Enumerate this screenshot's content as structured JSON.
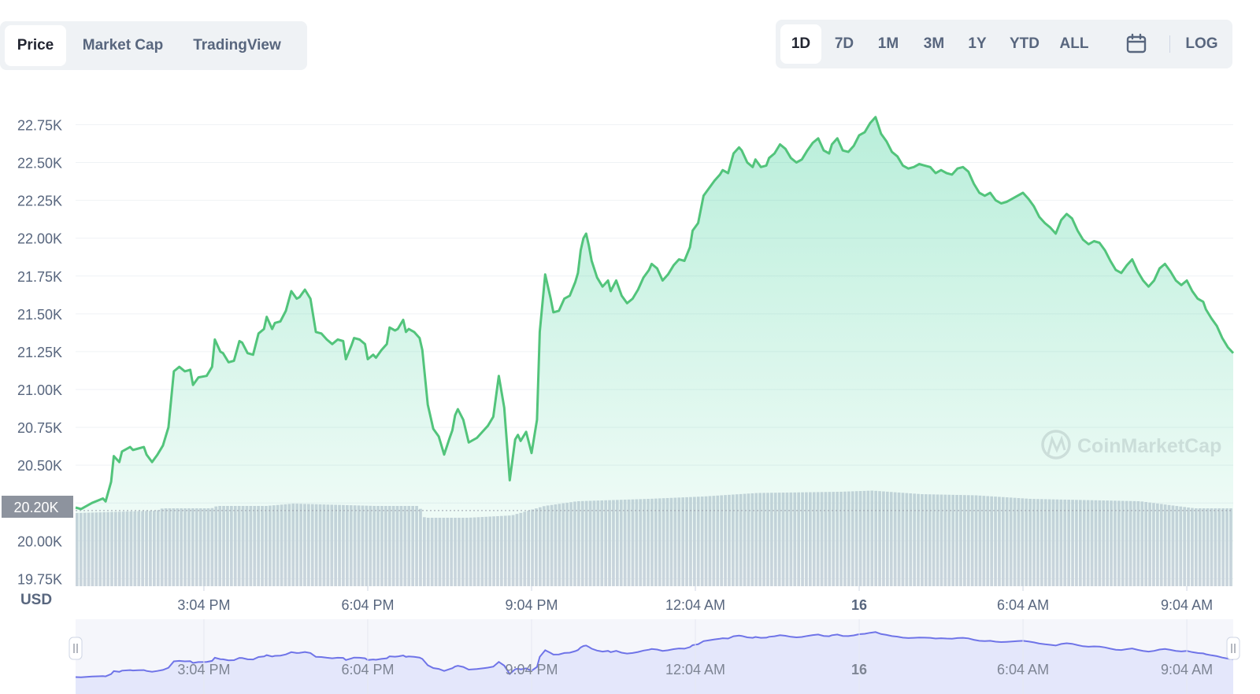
{
  "tabs": [
    {
      "label": "Price",
      "active": true
    },
    {
      "label": "Market Cap",
      "active": false
    },
    {
      "label": "TradingView",
      "active": false
    }
  ],
  "ranges": [
    {
      "label": "1D",
      "active": true
    },
    {
      "label": "7D",
      "active": false
    },
    {
      "label": "1M",
      "active": false
    },
    {
      "label": "3M",
      "active": false
    },
    {
      "label": "1Y",
      "active": false
    },
    {
      "label": "YTD",
      "active": false
    },
    {
      "label": "ALL",
      "active": false
    }
  ],
  "calendar_icon": "calendar-icon",
  "log_label": "LOG",
  "watermark": "CoinMarketCap",
  "currency_label": "USD",
  "current_price_label": "20.20K",
  "colors": {
    "line": "#52c47b",
    "area": "#16c784",
    "volume": "#cfd4df",
    "navigator_line": "#6f74e8",
    "navigator_fill": "#e4e7fb",
    "badge": "#8d939e"
  },
  "chart_data": {
    "type": "line",
    "title": "",
    "xlabel": "",
    "ylabel": "USD",
    "ylim": [
      19700,
      22950
    ],
    "y_ticks": [
      "19.75K",
      "20.00K",
      "20.25K",
      "20.50K",
      "20.75K",
      "21.00K",
      "21.25K",
      "21.50K",
      "21.75K",
      "22.00K",
      "22.25K",
      "22.50K",
      "22.75K"
    ],
    "y_tick_values": [
      19750,
      20000,
      20250,
      20500,
      20750,
      21000,
      21250,
      21500,
      21750,
      22000,
      22250,
      22500,
      22750
    ],
    "x_tick_labels": [
      "3:04 PM",
      "6:04 PM",
      "9:04 PM",
      "12:04 AM",
      "16",
      "6:04 AM",
      "9:04 AM"
    ],
    "x_tick_hours": [
      2.35,
      5.35,
      8.35,
      11.35,
      14.35,
      17.35,
      20.35
    ],
    "x_unit": "hours since start of 1D window (12:43 PM)",
    "grid": true,
    "legend": "none",
    "reference_price": 20200,
    "series": [
      {
        "name": "Price",
        "points": [
          [
            0.0,
            20220
          ],
          [
            0.1,
            20210
          ],
          [
            0.3,
            20250
          ],
          [
            0.5,
            20280
          ],
          [
            0.55,
            20260
          ],
          [
            0.65,
            20390
          ],
          [
            0.7,
            20560
          ],
          [
            0.8,
            20520
          ],
          [
            0.85,
            20590
          ],
          [
            1.0,
            20620
          ],
          [
            1.05,
            20600
          ],
          [
            1.15,
            20610
          ],
          [
            1.25,
            20620
          ],
          [
            1.3,
            20570
          ],
          [
            1.4,
            20520
          ],
          [
            1.5,
            20570
          ],
          [
            1.6,
            20630
          ],
          [
            1.7,
            20750
          ],
          [
            1.8,
            21120
          ],
          [
            1.9,
            21150
          ],
          [
            2.0,
            21120
          ],
          [
            2.1,
            21130
          ],
          [
            2.15,
            21030
          ],
          [
            2.25,
            21080
          ],
          [
            2.4,
            21090
          ],
          [
            2.5,
            21150
          ],
          [
            2.55,
            21330
          ],
          [
            2.65,
            21250
          ],
          [
            2.7,
            21240
          ],
          [
            2.8,
            21180
          ],
          [
            2.9,
            21190
          ],
          [
            3.0,
            21320
          ],
          [
            3.05,
            21310
          ],
          [
            3.15,
            21240
          ],
          [
            3.25,
            21230
          ],
          [
            3.35,
            21370
          ],
          [
            3.45,
            21400
          ],
          [
            3.5,
            21480
          ],
          [
            3.6,
            21400
          ],
          [
            3.65,
            21440
          ],
          [
            3.75,
            21450
          ],
          [
            3.85,
            21520
          ],
          [
            3.95,
            21650
          ],
          [
            4.05,
            21600
          ],
          [
            4.1,
            21610
          ],
          [
            4.2,
            21660
          ],
          [
            4.3,
            21600
          ],
          [
            4.4,
            21380
          ],
          [
            4.5,
            21370
          ],
          [
            4.6,
            21330
          ],
          [
            4.7,
            21300
          ],
          [
            4.8,
            21330
          ],
          [
            4.9,
            21320
          ],
          [
            4.95,
            21200
          ],
          [
            5.05,
            21290
          ],
          [
            5.1,
            21340
          ],
          [
            5.2,
            21330
          ],
          [
            5.3,
            21300
          ],
          [
            5.35,
            21200
          ],
          [
            5.45,
            21230
          ],
          [
            5.5,
            21210
          ],
          [
            5.6,
            21260
          ],
          [
            5.7,
            21300
          ],
          [
            5.75,
            21410
          ],
          [
            5.85,
            21390
          ],
          [
            5.9,
            21400
          ],
          [
            6.0,
            21460
          ],
          [
            6.05,
            21380
          ],
          [
            6.1,
            21400
          ],
          [
            6.2,
            21380
          ],
          [
            6.3,
            21340
          ],
          [
            6.35,
            21260
          ],
          [
            6.45,
            20900
          ],
          [
            6.55,
            20740
          ],
          [
            6.65,
            20690
          ],
          [
            6.75,
            20570
          ],
          [
            6.85,
            20680
          ],
          [
            6.9,
            20730
          ],
          [
            6.95,
            20830
          ],
          [
            7.0,
            20870
          ],
          [
            7.1,
            20800
          ],
          [
            7.2,
            20650
          ],
          [
            7.35,
            20680
          ],
          [
            7.5,
            20740
          ],
          [
            7.55,
            20760
          ],
          [
            7.65,
            20820
          ],
          [
            7.75,
            21090
          ],
          [
            7.85,
            20880
          ],
          [
            7.95,
            20400
          ],
          [
            8.05,
            20670
          ],
          [
            8.1,
            20700
          ],
          [
            8.15,
            20660
          ],
          [
            8.25,
            20720
          ],
          [
            8.35,
            20580
          ],
          [
            8.45,
            20800
          ],
          [
            8.5,
            21380
          ],
          [
            8.6,
            21760
          ],
          [
            8.7,
            21600
          ],
          [
            8.75,
            21510
          ],
          [
            8.85,
            21520
          ],
          [
            8.95,
            21600
          ],
          [
            9.05,
            21620
          ],
          [
            9.15,
            21710
          ],
          [
            9.2,
            21770
          ],
          [
            9.25,
            21920
          ],
          [
            9.3,
            22000
          ],
          [
            9.35,
            22030
          ],
          [
            9.4,
            21950
          ],
          [
            9.45,
            21850
          ],
          [
            9.55,
            21740
          ],
          [
            9.65,
            21680
          ],
          [
            9.75,
            21720
          ],
          [
            9.8,
            21650
          ],
          [
            9.9,
            21720
          ],
          [
            10.0,
            21620
          ],
          [
            10.1,
            21570
          ],
          [
            10.2,
            21600
          ],
          [
            10.3,
            21660
          ],
          [
            10.4,
            21740
          ],
          [
            10.5,
            21790
          ],
          [
            10.55,
            21830
          ],
          [
            10.65,
            21800
          ],
          [
            10.75,
            21720
          ],
          [
            10.85,
            21760
          ],
          [
            10.95,
            21820
          ],
          [
            11.05,
            21860
          ],
          [
            11.15,
            21850
          ],
          [
            11.25,
            21940
          ],
          [
            11.3,
            22050
          ],
          [
            11.4,
            22100
          ],
          [
            11.5,
            22280
          ],
          [
            11.6,
            22330
          ],
          [
            11.7,
            22380
          ],
          [
            11.8,
            22420
          ],
          [
            11.85,
            22450
          ],
          [
            11.95,
            22430
          ],
          [
            12.05,
            22560
          ],
          [
            12.15,
            22600
          ],
          [
            12.2,
            22580
          ],
          [
            12.3,
            22500
          ],
          [
            12.4,
            22470
          ],
          [
            12.45,
            22520
          ],
          [
            12.55,
            22470
          ],
          [
            12.65,
            22480
          ],
          [
            12.7,
            22530
          ],
          [
            12.8,
            22560
          ],
          [
            12.9,
            22620
          ],
          [
            13.0,
            22590
          ],
          [
            13.1,
            22530
          ],
          [
            13.2,
            22500
          ],
          [
            13.3,
            22520
          ],
          [
            13.4,
            22580
          ],
          [
            13.5,
            22630
          ],
          [
            13.6,
            22660
          ],
          [
            13.7,
            22580
          ],
          [
            13.8,
            22560
          ],
          [
            13.85,
            22620
          ],
          [
            13.95,
            22660
          ],
          [
            14.05,
            22580
          ],
          [
            14.15,
            22570
          ],
          [
            14.25,
            22610
          ],
          [
            14.35,
            22680
          ],
          [
            14.45,
            22700
          ],
          [
            14.55,
            22760
          ],
          [
            14.65,
            22800
          ],
          [
            14.75,
            22690
          ],
          [
            14.85,
            22640
          ],
          [
            14.95,
            22570
          ],
          [
            15.05,
            22540
          ],
          [
            15.15,
            22480
          ],
          [
            15.25,
            22460
          ],
          [
            15.35,
            22470
          ],
          [
            15.45,
            22490
          ],
          [
            15.55,
            22480
          ],
          [
            15.65,
            22470
          ],
          [
            15.75,
            22430
          ],
          [
            15.85,
            22450
          ],
          [
            15.95,
            22430
          ],
          [
            16.05,
            22420
          ],
          [
            16.15,
            22460
          ],
          [
            16.25,
            22470
          ],
          [
            16.35,
            22440
          ],
          [
            16.45,
            22360
          ],
          [
            16.55,
            22300
          ],
          [
            16.65,
            22280
          ],
          [
            16.75,
            22300
          ],
          [
            16.85,
            22250
          ],
          [
            16.95,
            22230
          ],
          [
            17.05,
            22240
          ],
          [
            17.15,
            22260
          ],
          [
            17.25,
            22280
          ],
          [
            17.35,
            22300
          ],
          [
            17.45,
            22260
          ],
          [
            17.55,
            22210
          ],
          [
            17.65,
            22140
          ],
          [
            17.75,
            22100
          ],
          [
            17.85,
            22070
          ],
          [
            17.95,
            22030
          ],
          [
            18.05,
            22120
          ],
          [
            18.15,
            22160
          ],
          [
            18.25,
            22130
          ],
          [
            18.35,
            22050
          ],
          [
            18.45,
            21990
          ],
          [
            18.55,
            21960
          ],
          [
            18.65,
            21980
          ],
          [
            18.75,
            21970
          ],
          [
            18.85,
            21920
          ],
          [
            18.95,
            21850
          ],
          [
            19.05,
            21790
          ],
          [
            19.15,
            21770
          ],
          [
            19.25,
            21820
          ],
          [
            19.35,
            21860
          ],
          [
            19.45,
            21780
          ],
          [
            19.55,
            21720
          ],
          [
            19.65,
            21680
          ],
          [
            19.75,
            21720
          ],
          [
            19.85,
            21800
          ],
          [
            19.95,
            21830
          ],
          [
            20.05,
            21780
          ],
          [
            20.15,
            21720
          ],
          [
            20.25,
            21690
          ],
          [
            20.35,
            21720
          ],
          [
            20.45,
            21650
          ],
          [
            20.55,
            21600
          ],
          [
            20.65,
            21580
          ],
          [
            20.7,
            21530
          ],
          [
            20.8,
            21470
          ],
          [
            20.9,
            21420
          ],
          [
            21.0,
            21340
          ],
          [
            21.1,
            21280
          ],
          [
            21.2,
            21240
          ]
        ]
      }
    ],
    "volume": {
      "description": "relative trading volume (bars beneath price)",
      "points": [
        [
          0.0,
          0.62
        ],
        [
          1.5,
          0.64
        ],
        [
          1.6,
          0.66
        ],
        [
          2.5,
          0.66
        ],
        [
          2.6,
          0.68
        ],
        [
          3.5,
          0.68
        ],
        [
          4.0,
          0.7
        ],
        [
          5.5,
          0.68
        ],
        [
          6.3,
          0.68
        ],
        [
          6.4,
          0.58
        ],
        [
          7.2,
          0.58
        ],
        [
          8.0,
          0.6
        ],
        [
          8.6,
          0.68
        ],
        [
          9.2,
          0.72
        ],
        [
          10.5,
          0.74
        ],
        [
          11.5,
          0.76
        ],
        [
          12.5,
          0.79
        ],
        [
          14.0,
          0.8
        ],
        [
          14.6,
          0.81
        ],
        [
          15.5,
          0.78
        ],
        [
          16.5,
          0.77
        ],
        [
          17.5,
          0.74
        ],
        [
          18.5,
          0.73
        ],
        [
          19.5,
          0.72
        ],
        [
          20.5,
          0.66
        ],
        [
          21.2,
          0.66
        ]
      ]
    }
  }
}
